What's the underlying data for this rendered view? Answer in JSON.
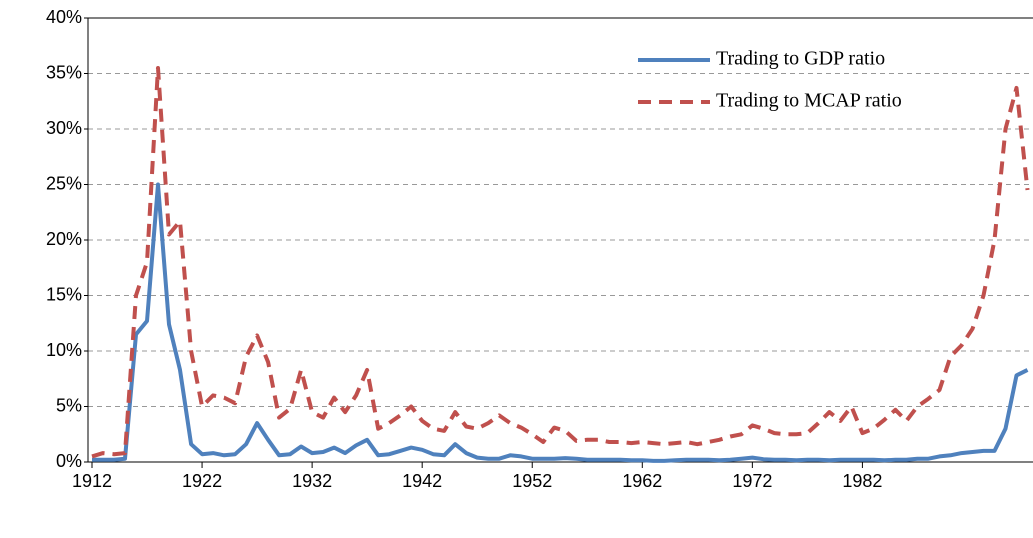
{
  "chart_data": {
    "type": "line",
    "x": [
      1912,
      1913,
      1914,
      1915,
      1916,
      1917,
      1918,
      1919,
      1920,
      1921,
      1922,
      1923,
      1924,
      1925,
      1926,
      1927,
      1928,
      1929,
      1930,
      1931,
      1932,
      1933,
      1934,
      1935,
      1936,
      1937,
      1938,
      1939,
      1940,
      1941,
      1942,
      1943,
      1944,
      1945,
      1946,
      1947,
      1948,
      1949,
      1950,
      1951,
      1952,
      1953,
      1954,
      1955,
      1956,
      1957,
      1958,
      1959,
      1960,
      1961,
      1962,
      1963,
      1964,
      1965,
      1966,
      1967,
      1968,
      1969,
      1970,
      1971,
      1972,
      1973,
      1974,
      1975,
      1976,
      1977,
      1978,
      1979,
      1980,
      1981,
      1982,
      1983,
      1984,
      1985,
      1986,
      1987,
      1988,
      1989,
      1990,
      1991,
      1992,
      1993,
      1994,
      1995,
      1996,
      1997
    ],
    "series": [
      {
        "name": "Trading to GDP ratio",
        "color": "#4f81bd",
        "dash": false,
        "values": [
          0.2,
          0.2,
          0.2,
          0.3,
          11.5,
          12.7,
          25,
          12.4,
          8.3,
          1.6,
          0.7,
          0.8,
          0.6,
          0.7,
          1.6,
          3.5,
          2.0,
          0.6,
          0.7,
          1.4,
          0.8,
          0.9,
          1.3,
          0.8,
          1.5,
          2.0,
          0.6,
          0.7,
          1.0,
          1.3,
          1.1,
          0.7,
          0.6,
          1.6,
          0.8,
          0.4,
          0.3,
          0.3,
          0.6,
          0.5,
          0.3,
          0.3,
          0.3,
          0.35,
          0.3,
          0.2,
          0.2,
          0.2,
          0.2,
          0.15,
          0.15,
          0.1,
          0.1,
          0.15,
          0.2,
          0.2,
          0.2,
          0.15,
          0.2,
          0.3,
          0.4,
          0.25,
          0.2,
          0.2,
          0.15,
          0.2,
          0.2,
          0.15,
          0.2,
          0.2,
          0.2,
          0.2,
          0.15,
          0.2,
          0.2,
          0.3,
          0.3,
          0.5,
          0.6,
          0.8,
          0.9,
          1.0,
          1.0,
          3.0,
          7.8,
          8.3
        ]
      },
      {
        "name": "Trading to MCAP ratio",
        "color": "#c0504d",
        "dash": true,
        "values": [
          0.5,
          0.8,
          0.7,
          0.8,
          15,
          18,
          35.5,
          20.5,
          21.7,
          10,
          5,
          6,
          5.8,
          5.3,
          9.5,
          11.4,
          9,
          4,
          4.8,
          8.3,
          4.5,
          4,
          5.8,
          4.5,
          6,
          8.3,
          3,
          3.5,
          4.2,
          5,
          3.7,
          3,
          2.8,
          4.5,
          3.2,
          3,
          3.5,
          4.2,
          3.5,
          3.1,
          2.5,
          1.8,
          3.1,
          2.8,
          1.9,
          2,
          2,
          1.8,
          1.8,
          1.7,
          1.8,
          1.7,
          1.6,
          1.7,
          1.8,
          1.6,
          1.8,
          2,
          2.3,
          2.5,
          3.3,
          3,
          2.6,
          2.5,
          2.5,
          2.6,
          3.5,
          4.5,
          3.7,
          5,
          2.6,
          3.0,
          3.8,
          4.7,
          3.7,
          5.0,
          5.7,
          6.5,
          9.5,
          10.5,
          12,
          15,
          20,
          30,
          33.7,
          24.5
        ]
      }
    ],
    "xlim": [
      1911.6364,
      1997.5
    ],
    "xticks": [
      1912,
      1922,
      1932,
      1942,
      1952,
      1962,
      1972,
      1982
    ],
    "ylim": [
      0,
      40
    ],
    "yticks": [
      {
        "value": 0,
        "label": "0%"
      },
      {
        "value": 5,
        "label": "5%"
      },
      {
        "value": 10,
        "label": "10%"
      },
      {
        "value": 15,
        "label": "15%"
      },
      {
        "value": 20,
        "label": "20%"
      },
      {
        "value": 25,
        "label": "25%"
      },
      {
        "value": 30,
        "label": "30%"
      },
      {
        "value": 35,
        "label": "35%"
      },
      {
        "value": 40,
        "label": "40%"
      }
    ],
    "grid": true,
    "legend": "upper-right"
  }
}
